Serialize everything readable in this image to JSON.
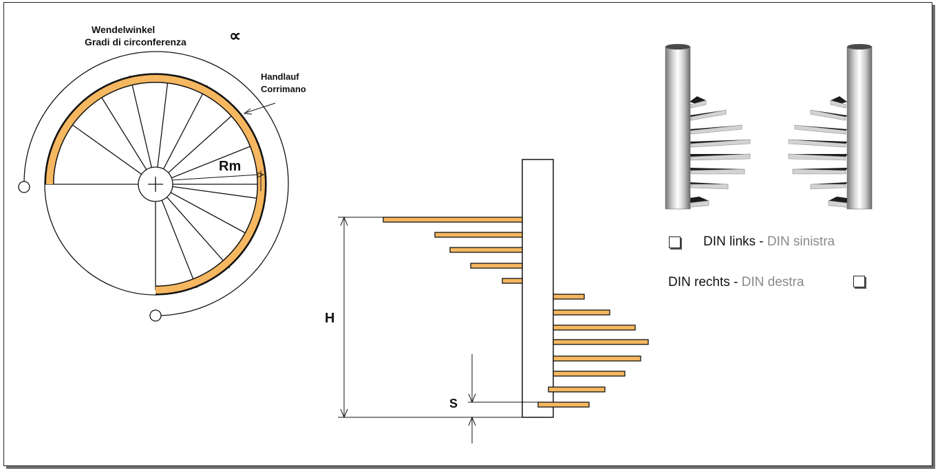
{
  "labels": {
    "angle_de": "Wendelwinkel",
    "angle_it": "Gradi di circonferenza",
    "alpha": "∝",
    "handrail_de": "Handlauf",
    "handrail_it": "Corrimano",
    "radius": "Rm",
    "height": "H",
    "step": "S"
  },
  "options": {
    "left_de": "DIN links",
    "left_sep": " - ",
    "left_it": "DIN sinistra",
    "right_de": "DIN rechts",
    "right_sep": " - ",
    "right_it": "DIN destra"
  },
  "colors": {
    "handrail": "#f5b760",
    "line": "#111111",
    "secondary_text": "#8a8a8a"
  }
}
